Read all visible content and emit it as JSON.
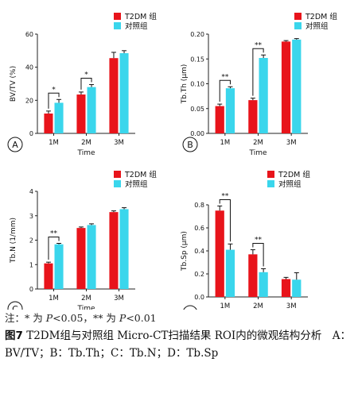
{
  "colors": {
    "t2dm": "#e8141b",
    "control": "#3ad6ec",
    "axis": "#222222",
    "error": "#111111"
  },
  "legend": {
    "t2dm": "T2DM 组",
    "control": "对照组"
  },
  "note": {
    "prefix": "注：* 为 ",
    "p": "P",
    "lt05": "<0.05，",
    "stars2": "** 为 ",
    "lt01": "<0.01"
  },
  "caption": {
    "label": "图7",
    "text": "T2DM组与对照组 Micro-CT扫描结果 ROI内的微观结构分析　A：BV/TV；B：Tb.Th；C：Tb.N；D：Tb.Sp"
  },
  "chart_data": [
    {
      "type": "bar",
      "panel": "A",
      "ylabel": "BV/TV (%)",
      "xlabel": "Time",
      "categories": [
        "1M",
        "2M",
        "3M"
      ],
      "ylim": [
        0,
        60
      ],
      "yticks": [
        "0",
        "20",
        "40",
        "60"
      ],
      "series": [
        {
          "name": "T2DM 组",
          "values": [
            12,
            23.5,
            45.5
          ],
          "errors": [
            1.5,
            1.5,
            3.5
          ]
        },
        {
          "name": "对照组",
          "values": [
            18.5,
            28,
            48.5
          ],
          "errors": [
            2.0,
            1.5,
            1.5
          ]
        }
      ],
      "significance": [
        "*",
        "*",
        ""
      ]
    },
    {
      "type": "bar",
      "panel": "B",
      "ylabel": "Tb.Th (μm)",
      "xlabel": "Time",
      "categories": [
        "1M",
        "2M",
        "3M"
      ],
      "ylim": [
        0,
        0.2
      ],
      "yticks": [
        "0.00",
        "0.05",
        "0.10",
        "0.15",
        "0.20"
      ],
      "series": [
        {
          "name": "T2DM 组",
          "values": [
            0.055,
            0.067,
            0.185
          ],
          "errors": [
            0.004,
            0.004,
            0.002
          ]
        },
        {
          "name": "对照组",
          "values": [
            0.091,
            0.152,
            0.189
          ],
          "errors": [
            0.003,
            0.006,
            0.002
          ]
        }
      ],
      "significance": [
        "**",
        "**",
        ""
      ]
    },
    {
      "type": "bar",
      "panel": "C",
      "ylabel": "Tb.N (1/mm)",
      "xlabel": "Time",
      "categories": [
        "1M",
        "2M",
        "3M"
      ],
      "ylim": [
        0,
        4
      ],
      "yticks": [
        "0",
        "1",
        "2",
        "3",
        "4"
      ],
      "series": [
        {
          "name": "T2DM 组",
          "values": [
            1.05,
            2.5,
            3.15
          ],
          "errors": [
            0.05,
            0.04,
            0.05
          ]
        },
        {
          "name": "对照组",
          "values": [
            1.83,
            2.62,
            3.27
          ],
          "errors": [
            0.04,
            0.05,
            0.06
          ]
        }
      ],
      "significance": [
        "**",
        "",
        ""
      ]
    },
    {
      "type": "bar",
      "panel": "D",
      "ylabel": "Tb.Sp (μm)",
      "xlabel": "Time",
      "categories": [
        "1M",
        "2M",
        "3M"
      ],
      "ylim": [
        0,
        0.8
      ],
      "yticks": [
        "0.0",
        "0.2",
        "0.4",
        "0.6",
        "0.8"
      ],
      "series": [
        {
          "name": "T2DM 组",
          "values": [
            0.75,
            0.37,
            0.155
          ],
          "errors": [
            0.04,
            0.04,
            0.015
          ]
        },
        {
          "name": "对照组",
          "values": [
            0.41,
            0.215,
            0.15
          ],
          "errors": [
            0.05,
            0.03,
            0.06
          ]
        }
      ],
      "significance": [
        "**",
        "**",
        ""
      ]
    }
  ]
}
